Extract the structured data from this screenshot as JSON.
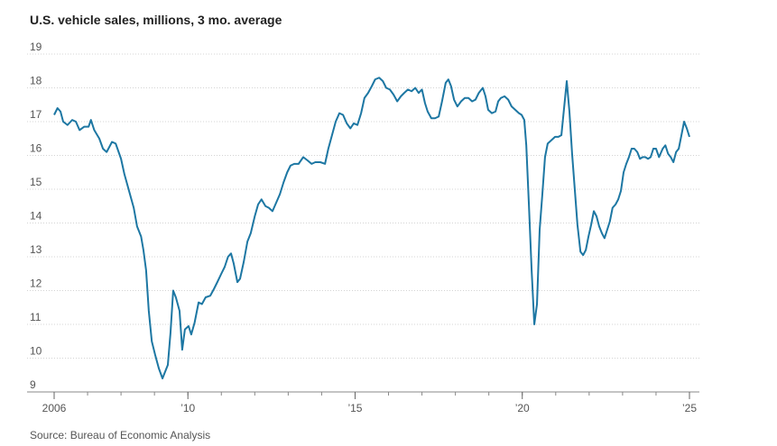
{
  "chart_data": {
    "type": "line",
    "title": "U.S. vehicle sales, millions, 3 mo. average",
    "source": "Source: Bureau of Economic Analysis",
    "xlim": [
      2006,
      2025
    ],
    "xticks": [
      {
        "value": 2006,
        "label": "2006"
      },
      {
        "value": 2010,
        "label": "’10"
      },
      {
        "value": 2015,
        "label": "’15"
      },
      {
        "value": 2020,
        "label": "’20"
      },
      {
        "value": 2025,
        "label": "’25"
      }
    ],
    "ylim": [
      9,
      19
    ],
    "yticks": [
      9,
      10,
      11,
      12,
      13,
      14,
      15,
      16,
      17,
      18,
      19
    ],
    "grid": true,
    "series": [
      {
        "name": "U.S. vehicle sales",
        "color": "#1d77a3",
        "x": [
          2006.0,
          2006.1,
          2006.19,
          2006.27,
          2006.4,
          2006.54,
          2006.65,
          2006.76,
          2006.9,
          2007.03,
          2007.1,
          2007.2,
          2007.35,
          2007.46,
          2007.57,
          2007.65,
          2007.73,
          2007.84,
          2008.0,
          2008.1,
          2008.24,
          2008.38,
          2008.48,
          2008.6,
          2008.67,
          2008.75,
          2008.83,
          2008.92,
          2009.02,
          2009.13,
          2009.24,
          2009.32,
          2009.4,
          2009.48,
          2009.56,
          2009.64,
          2009.75,
          2009.83,
          2009.91,
          2010.02,
          2010.1,
          2010.2,
          2010.32,
          2010.42,
          2010.53,
          2010.67,
          2010.78,
          2010.88,
          2011.0,
          2011.1,
          2011.2,
          2011.29,
          2011.37,
          2011.48,
          2011.56,
          2011.67,
          2011.78,
          2011.88,
          2012.0,
          2012.1,
          2012.2,
          2012.32,
          2012.42,
          2012.53,
          2012.64,
          2012.75,
          2012.86,
          2012.97,
          2013.07,
          2013.18,
          2013.31,
          2013.45,
          2013.58,
          2013.7,
          2013.81,
          2013.96,
          2014.1,
          2014.2,
          2014.31,
          2014.42,
          2014.53,
          2014.64,
          2014.75,
          2014.86,
          2014.96,
          2015.07,
          2015.18,
          2015.28,
          2015.39,
          2015.5,
          2015.6,
          2015.72,
          2015.83,
          2015.93,
          2016.04,
          2016.15,
          2016.26,
          2016.37,
          2016.47,
          2016.58,
          2016.69,
          2016.8,
          2016.9,
          2017.0,
          2017.09,
          2017.17,
          2017.28,
          2017.39,
          2017.5,
          2017.6,
          2017.71,
          2017.79,
          2017.87,
          2017.96,
          2018.06,
          2018.17,
          2018.28,
          2018.39,
          2018.5,
          2018.6,
          2018.7,
          2018.82,
          2018.9,
          2018.98,
          2019.09,
          2019.2,
          2019.28,
          2019.36,
          2019.47,
          2019.58,
          2019.68,
          2019.79,
          2019.9,
          2019.98,
          2020.06,
          2020.12,
          2020.2,
          2020.28,
          2020.36,
          2020.44,
          2020.52,
          2020.6,
          2020.68,
          2020.76,
          2020.87,
          2020.98,
          2021.08,
          2021.17,
          2021.25,
          2021.33,
          2021.41,
          2021.49,
          2021.57,
          2021.65,
          2021.74,
          2021.82,
          2021.9,
          2021.98,
          2022.06,
          2022.14,
          2022.22,
          2022.3,
          2022.38,
          2022.46,
          2022.54,
          2022.62,
          2022.7,
          2022.79,
          2022.87,
          2022.95,
          2023.03,
          2023.11,
          2023.19,
          2023.27,
          2023.35,
          2023.44,
          2023.52,
          2023.6,
          2023.68,
          2023.76,
          2023.84,
          2023.92,
          2024.0,
          2024.09,
          2024.2,
          2024.28,
          2024.36,
          2024.44,
          2024.52,
          2024.6,
          2024.68,
          2024.76,
          2024.84,
          2024.92,
          2025.0
        ],
        "values": [
          17.2,
          17.4,
          17.3,
          17.0,
          16.9,
          17.05,
          17.0,
          16.75,
          16.85,
          16.85,
          17.05,
          16.75,
          16.5,
          16.2,
          16.1,
          16.25,
          16.4,
          16.35,
          15.9,
          15.45,
          14.95,
          14.45,
          13.9,
          13.6,
          13.2,
          12.6,
          11.4,
          10.5,
          10.1,
          9.7,
          9.4,
          9.6,
          9.8,
          10.75,
          12.0,
          11.8,
          11.4,
          10.25,
          10.85,
          10.95,
          10.7,
          11.05,
          11.65,
          11.6,
          11.8,
          11.85,
          12.05,
          12.25,
          12.5,
          12.7,
          13.0,
          13.1,
          12.8,
          12.25,
          12.35,
          12.85,
          13.45,
          13.7,
          14.2,
          14.55,
          14.7,
          14.5,
          14.45,
          14.35,
          14.6,
          14.85,
          15.2,
          15.5,
          15.7,
          15.75,
          15.75,
          15.95,
          15.85,
          15.75,
          15.8,
          15.8,
          15.75,
          16.2,
          16.6,
          17.0,
          17.25,
          17.2,
          16.95,
          16.8,
          16.95,
          16.9,
          17.25,
          17.7,
          17.85,
          18.05,
          18.25,
          18.3,
          18.2,
          18.0,
          17.95,
          17.8,
          17.6,
          17.75,
          17.85,
          17.95,
          17.9,
          18.0,
          17.85,
          17.95,
          17.55,
          17.3,
          17.1,
          17.1,
          17.15,
          17.6,
          18.15,
          18.25,
          18.05,
          17.65,
          17.45,
          17.6,
          17.7,
          17.7,
          17.6,
          17.65,
          17.85,
          18.0,
          17.75,
          17.35,
          17.25,
          17.3,
          17.6,
          17.7,
          17.75,
          17.65,
          17.45,
          17.35,
          17.25,
          17.2,
          17.05,
          16.3,
          14.5,
          12.6,
          11.0,
          11.6,
          13.8,
          14.85,
          15.95,
          16.35,
          16.45,
          16.55,
          16.55,
          16.6,
          17.4,
          18.2,
          17.3,
          16.05,
          15.0,
          13.95,
          13.15,
          13.05,
          13.2,
          13.6,
          13.95,
          14.35,
          14.2,
          13.9,
          13.7,
          13.55,
          13.8,
          14.05,
          14.45,
          14.55,
          14.7,
          14.95,
          15.5,
          15.75,
          15.95,
          16.2,
          16.2,
          16.1,
          15.9,
          15.95,
          15.95,
          15.9,
          15.95,
          16.2,
          16.2,
          15.95,
          16.2,
          16.3,
          16.05,
          15.95,
          15.8,
          16.1,
          16.2,
          16.6,
          17.0,
          16.8,
          16.55
        ]
      }
    ]
  }
}
